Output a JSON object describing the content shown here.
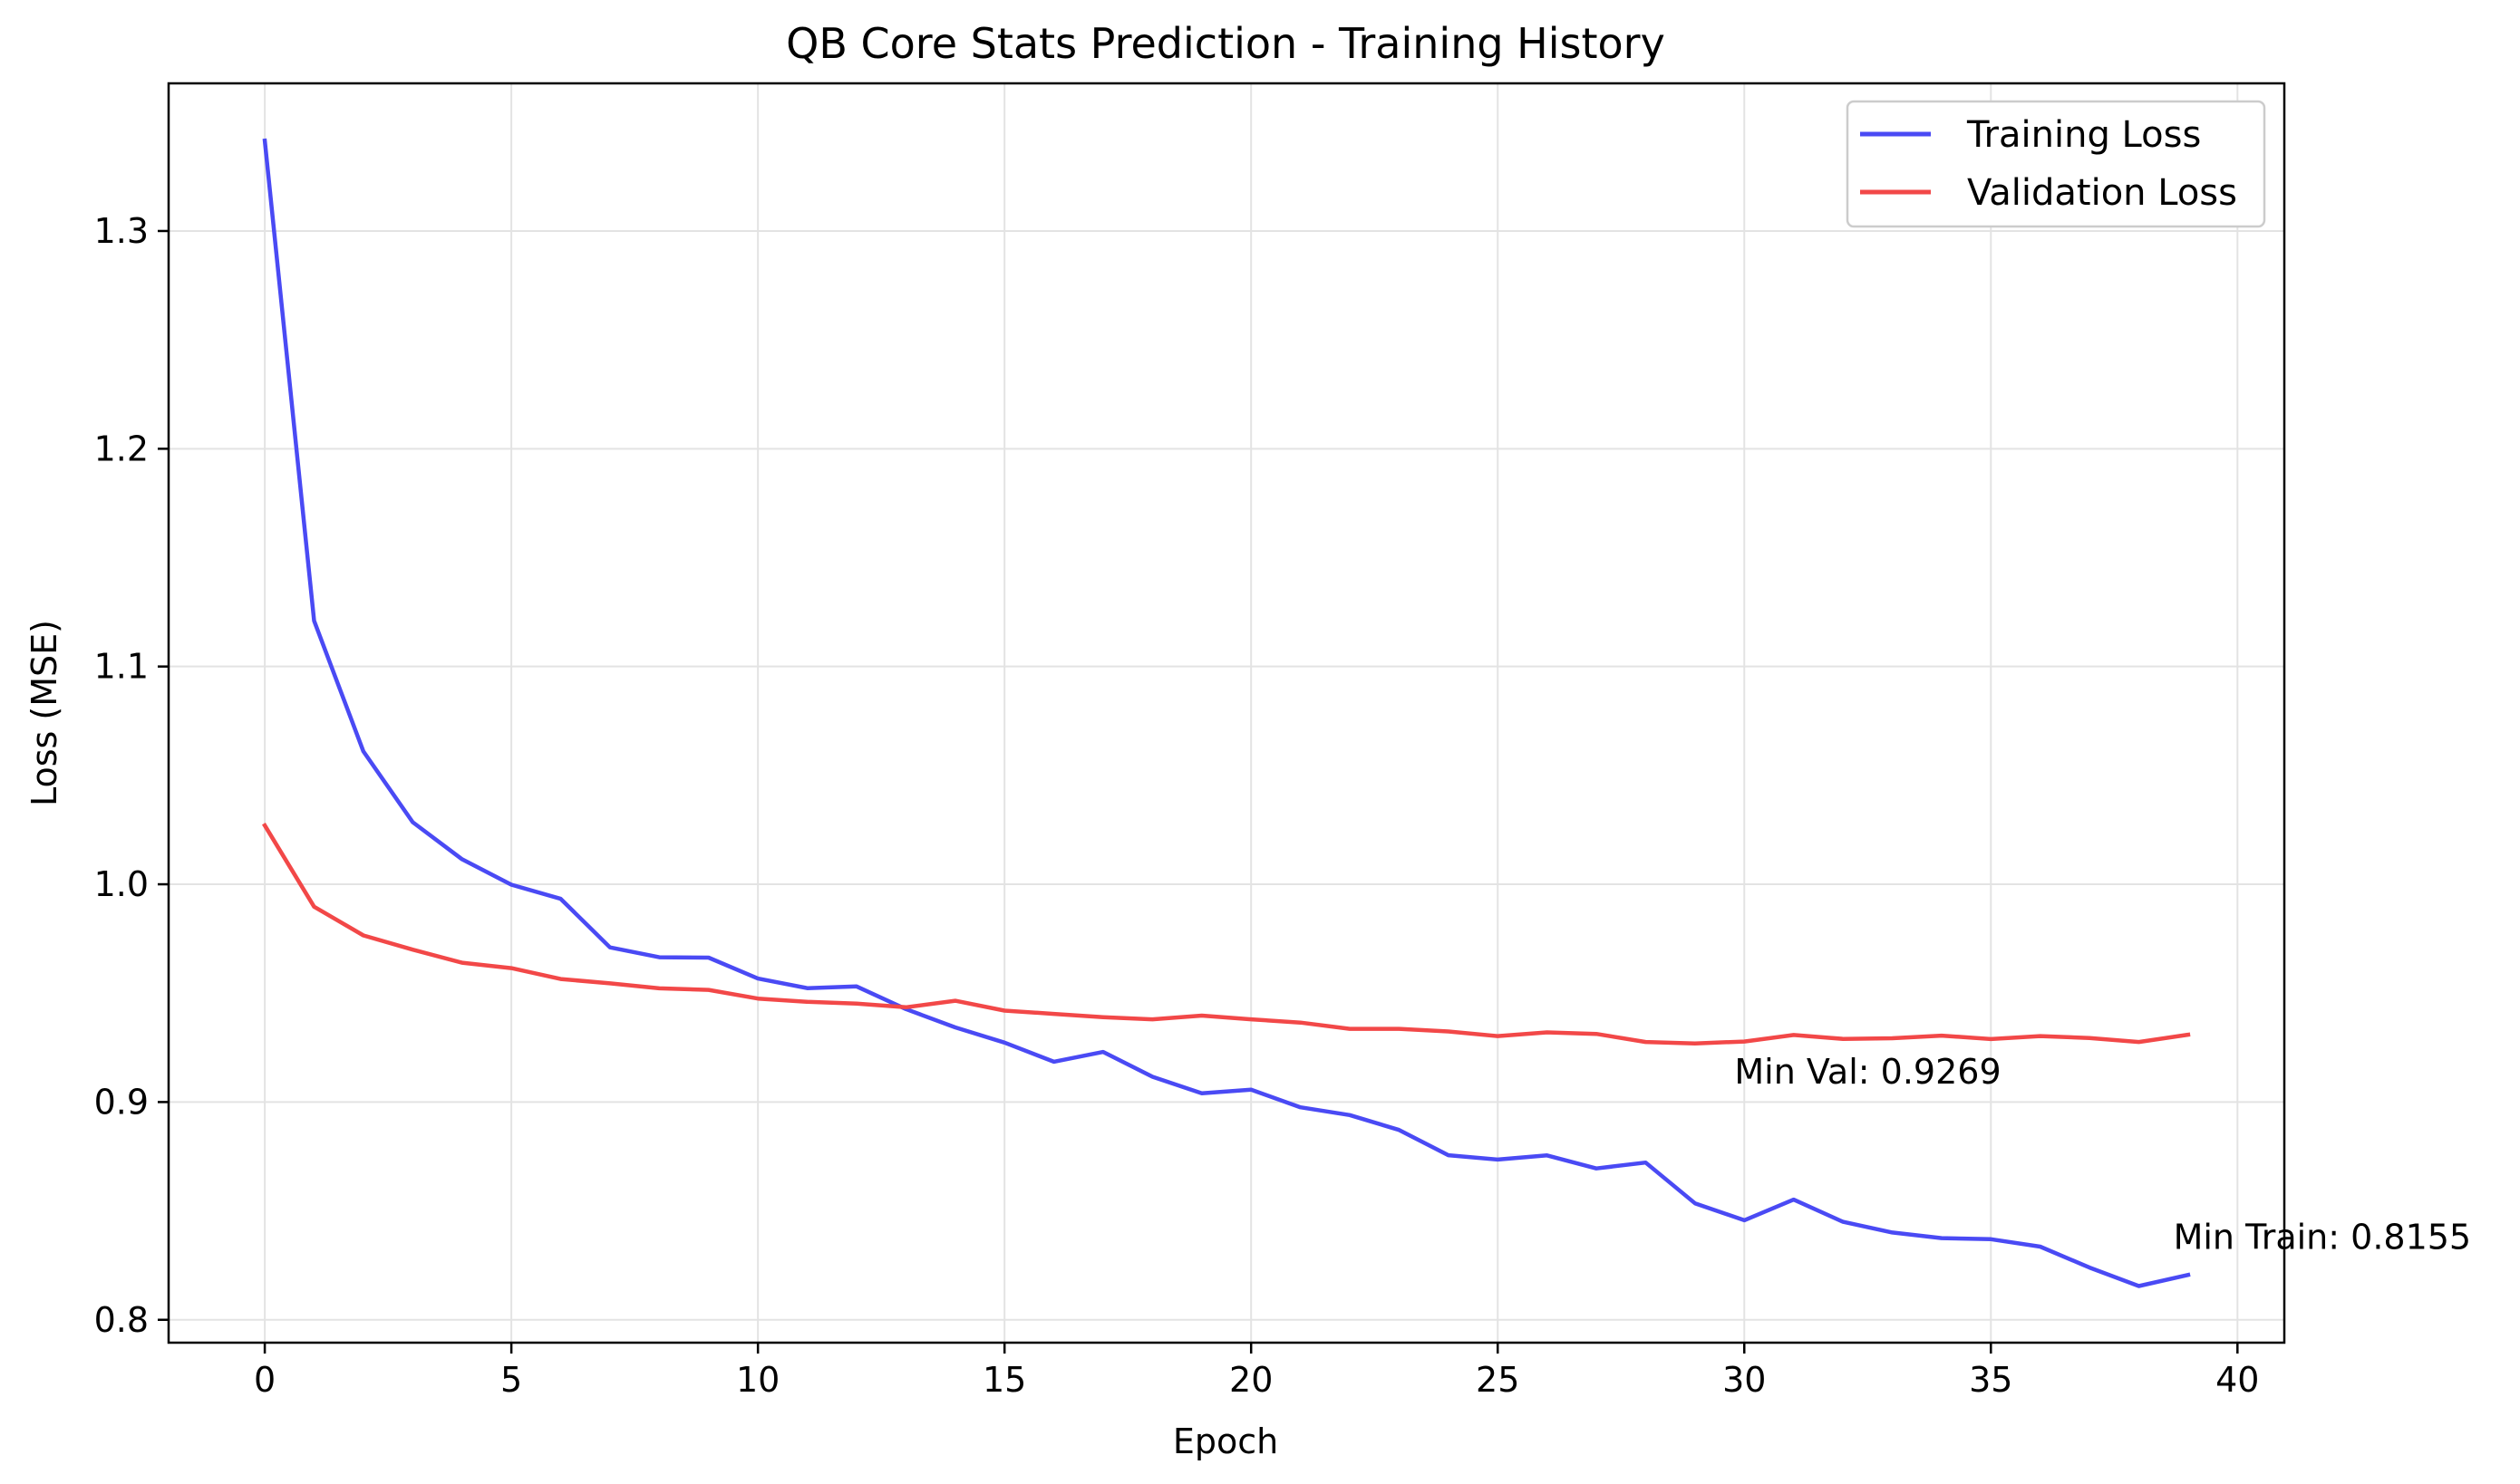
{
  "chart_data": {
    "type": "line",
    "title": "QB Core Stats Prediction - Training History",
    "xlabel": "Epoch",
    "ylabel": "Loss (MSE)",
    "xlim": [
      -1.95,
      40.95
    ],
    "ylim": [
      0.7895,
      1.3678
    ],
    "x_ticks": [
      0,
      5,
      10,
      15,
      20,
      25,
      30,
      35,
      40
    ],
    "y_ticks": [
      0.8,
      0.9,
      1.0,
      1.1,
      1.2,
      1.3
    ],
    "x_tick_labels": [
      "0",
      "5",
      "10",
      "15",
      "20",
      "25",
      "30",
      "35",
      "40"
    ],
    "y_tick_labels": [
      "0.8",
      "0.9",
      "1.0",
      "1.1",
      "1.2",
      "1.3"
    ],
    "grid": true,
    "legend_position": "top-right",
    "x": [
      0,
      1,
      2,
      3,
      4,
      5,
      6,
      7,
      8,
      9,
      10,
      11,
      12,
      13,
      14,
      15,
      16,
      17,
      18,
      19,
      20,
      21,
      22,
      23,
      24,
      25,
      26,
      27,
      28,
      29,
      30,
      31,
      32,
      33,
      34,
      35,
      36,
      37,
      38,
      39
    ],
    "series": [
      {
        "name": "Training Loss",
        "color": "#4a4af4",
        "values": [
          1.3415,
          1.121,
          1.061,
          1.0285,
          1.0115,
          0.9998,
          0.9933,
          0.971,
          0.9665,
          0.9663,
          0.9567,
          0.9523,
          0.9531,
          0.9427,
          0.9343,
          0.9273,
          0.9185,
          0.923,
          0.9116,
          0.904,
          0.9057,
          0.8976,
          0.894,
          0.8872,
          0.8756,
          0.8736,
          0.8755,
          0.8695,
          0.8722,
          0.8535,
          0.8457,
          0.8552,
          0.845,
          0.8401,
          0.8375,
          0.837,
          0.8336,
          0.824,
          0.8155,
          0.8206
        ]
      },
      {
        "name": "Validation Loss",
        "color": "#f24848",
        "values": [
          1.027,
          0.9897,
          0.9765,
          0.97,
          0.964,
          0.9615,
          0.9565,
          0.9545,
          0.9522,
          0.9515,
          0.9475,
          0.946,
          0.9452,
          0.9435,
          0.9465,
          0.942,
          0.9405,
          0.939,
          0.938,
          0.9397,
          0.938,
          0.9365,
          0.9336,
          0.9336,
          0.9324,
          0.9303,
          0.932,
          0.9313,
          0.9276,
          0.9269,
          0.9278,
          0.9308,
          0.929,
          0.9293,
          0.9305,
          0.9289,
          0.9303,
          0.9294,
          0.9276,
          0.9309
        ]
      }
    ],
    "annotations": [
      {
        "text": "Min Val: 0.9269",
        "x": 29.8,
        "y": 0.9085
      },
      {
        "text": "Min Train: 0.8155",
        "x": 38.7,
        "y": 0.8325
      }
    ]
  }
}
